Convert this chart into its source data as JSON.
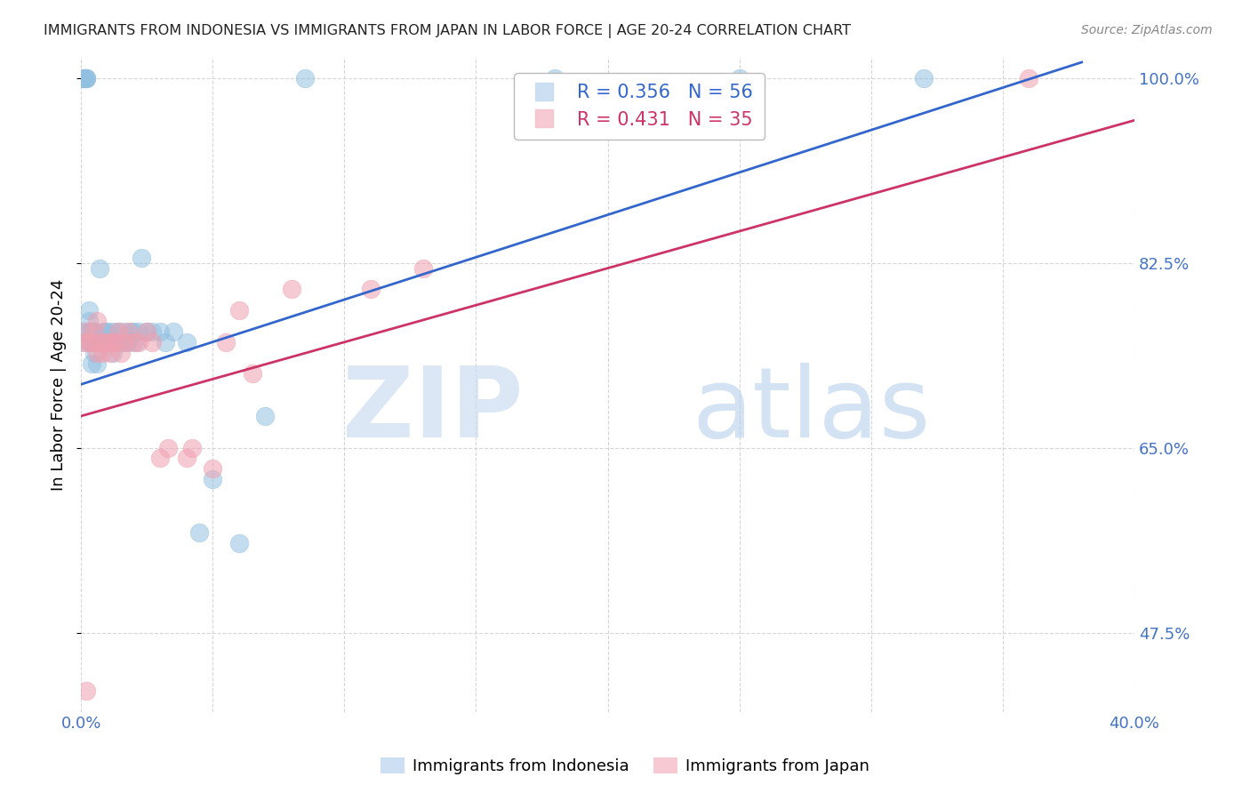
{
  "title": "IMMIGRANTS FROM INDONESIA VS IMMIGRANTS FROM JAPAN IN LABOR FORCE | AGE 20-24 CORRELATION CHART",
  "source": "Source: ZipAtlas.com",
  "ylabel": "In Labor Force | Age 20-24",
  "xlim": [
    0.0,
    0.4
  ],
  "ylim": [
    0.4,
    1.02
  ],
  "ytick_positions": [
    0.475,
    0.65,
    0.825,
    1.0
  ],
  "xtick_positions": [
    0.0,
    0.05,
    0.1,
    0.15,
    0.2,
    0.25,
    0.3,
    0.35,
    0.4
  ],
  "indonesia_color": "#92c0e0",
  "japan_color": "#f0a0b0",
  "indonesia_line_color": "#3366cc",
  "japan_line_color": "#cc3366",
  "R_indonesia": 0.356,
  "N_indonesia": 56,
  "R_japan": 0.431,
  "N_japan": 35,
  "background_color": "#ffffff",
  "grid_color": "#cccccc",
  "tick_label_color": "#4472c4",
  "title_color": "#222222",
  "legend_fill_indonesia": "#c5daf0",
  "legend_fill_japan": "#f5c0cc",
  "indonesia_x": [
    0.0,
    0.0,
    0.001,
    0.001,
    0.001,
    0.002,
    0.002,
    0.002,
    0.003,
    0.003,
    0.003,
    0.003,
    0.004,
    0.004,
    0.004,
    0.005,
    0.005,
    0.005,
    0.006,
    0.006,
    0.007,
    0.007,
    0.008,
    0.008,
    0.009,
    0.009,
    0.01,
    0.01,
    0.011,
    0.012,
    0.012,
    0.013,
    0.014,
    0.015,
    0.016,
    0.017,
    0.018,
    0.019,
    0.02,
    0.021,
    0.022,
    0.023,
    0.025,
    0.027,
    0.03,
    0.032,
    0.035,
    0.04,
    0.045,
    0.05,
    0.06,
    0.07,
    0.085,
    0.18,
    0.25,
    0.32
  ],
  "indonesia_y": [
    0.75,
    0.76,
    1.0,
    1.0,
    1.0,
    1.0,
    1.0,
    1.0,
    0.75,
    0.77,
    0.78,
    0.76,
    0.73,
    0.75,
    0.76,
    0.74,
    0.75,
    0.76,
    0.73,
    0.75,
    0.75,
    0.82,
    0.75,
    0.76,
    0.75,
    0.76,
    0.75,
    0.76,
    0.75,
    0.74,
    0.76,
    0.75,
    0.76,
    0.75,
    0.76,
    0.75,
    0.75,
    0.76,
    0.76,
    0.75,
    0.76,
    0.83,
    0.76,
    0.76,
    0.76,
    0.75,
    0.76,
    0.75,
    0.57,
    0.62,
    0.56,
    0.68,
    1.0,
    1.0,
    1.0,
    1.0
  ],
  "japan_x": [
    0.001,
    0.002,
    0.003,
    0.004,
    0.005,
    0.006,
    0.006,
    0.007,
    0.008,
    0.009,
    0.01,
    0.011,
    0.012,
    0.013,
    0.014,
    0.015,
    0.016,
    0.018,
    0.02,
    0.022,
    0.025,
    0.027,
    0.03,
    0.033,
    0.04,
    0.042,
    0.05,
    0.055,
    0.06,
    0.065,
    0.08,
    0.11,
    0.13,
    0.002,
    0.36
  ],
  "japan_y": [
    0.75,
    0.42,
    0.75,
    0.75,
    0.76,
    0.74,
    0.77,
    0.75,
    0.74,
    0.75,
    0.75,
    0.74,
    0.75,
    0.75,
    0.76,
    0.74,
    0.75,
    0.76,
    0.75,
    0.75,
    0.76,
    0.75,
    0.64,
    0.65,
    0.64,
    0.65,
    0.63,
    0.75,
    0.78,
    0.72,
    0.8,
    0.8,
    0.82,
    0.76,
    1.0
  ],
  "indonesia_line_x": [
    0.0,
    0.38
  ],
  "indonesia_line_y": [
    0.71,
    1.015
  ],
  "japan_line_x": [
    0.0,
    0.4
  ],
  "japan_line_y": [
    0.68,
    0.96
  ]
}
